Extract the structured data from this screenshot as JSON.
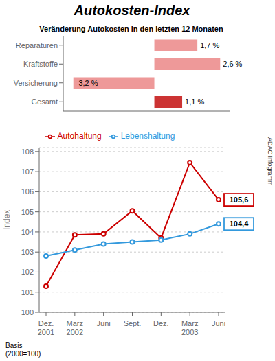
{
  "chart_data": [
    {
      "type": "line",
      "title": "Autokosten-Index",
      "ylabel": "Index",
      "categories": [
        "Dez.\n2001",
        "März\n2002",
        "Juni",
        "Sept.",
        "Dez.",
        "März\n2003",
        "Juni"
      ],
      "series": [
        {
          "name": "Autohaltung",
          "color": "#CC0000",
          "values": [
            101.3,
            103.85,
            103.9,
            105.05,
            103.7,
            107.45,
            105.6
          ],
          "value_labels": [
            null,
            null,
            null,
            null,
            null,
            null,
            "105,6"
          ]
        },
        {
          "name": "Lebenshaltung",
          "color": "#3399DD",
          "values": [
            102.8,
            103.1,
            103.4,
            103.5,
            103.6,
            103.9,
            104.4
          ],
          "value_labels": [
            null,
            null,
            null,
            null,
            null,
            null,
            "104,4"
          ]
        }
      ],
      "ylim": [
        100,
        108.2
      ],
      "yticks": [
        100,
        101,
        102,
        103,
        104,
        105,
        106,
        107,
        108
      ],
      "grid": true,
      "legend": "top",
      "annotations": [
        "ADAC Infogramm",
        "Basis\n(2000=100)"
      ]
    },
    {
      "type": "bar",
      "orientation": "horizontal",
      "title": "Veränderung Autokosten in den letzten 12 Monaten",
      "categories": [
        "Reparaturen",
        "Kraftstoffe",
        "Versicherung",
        "Gesamt"
      ],
      "values": [
        1.7,
        2.6,
        -3.2,
        1.1
      ],
      "value_labels": [
        "1,7 %",
        "2,6 %",
        "-3,2 %",
        "1,1 %"
      ],
      "colors": [
        "#EE9999",
        "#EE9999",
        "#EE9999",
        "#CC3333"
      ],
      "xlim": [
        -3.6,
        3.0
      ],
      "data_labels": true,
      "tick_labels": "y"
    }
  ]
}
